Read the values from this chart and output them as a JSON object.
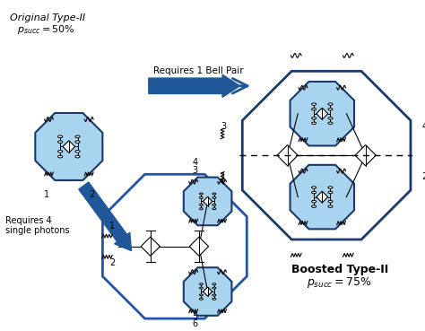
{
  "dark_blue": "#1b3a6b",
  "medium_blue": "#2255aa",
  "light_blue": "#a8d4f0",
  "arrow_blue": "#1f5799",
  "bg_color": "#ffffff",
  "orig_title": "Original Type-II",
  "orig_psucc": "$p_{succ} = 50\\%$",
  "boosted_title": "Boosted Type-II",
  "boosted_psucc": "$p_{succ} = 75\\%$",
  "req_bell": "Requires 1 Bell Pair",
  "req_photons": "Requires 4\nsingle photons"
}
